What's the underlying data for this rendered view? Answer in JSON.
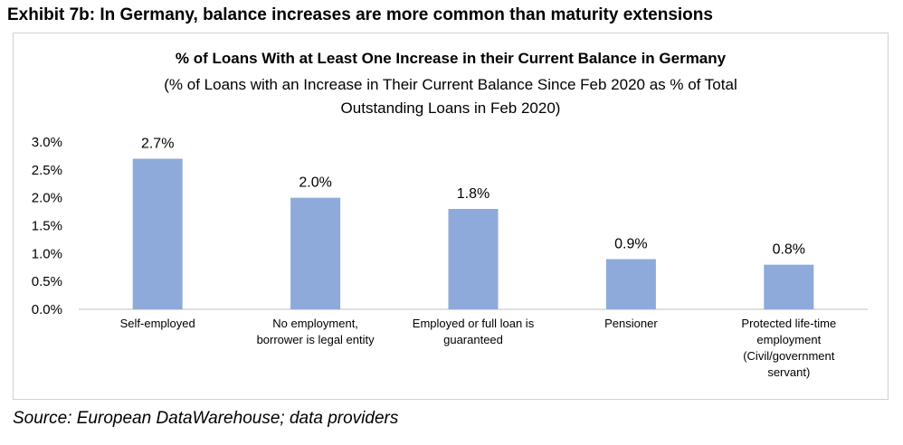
{
  "exhibit_title": "Exhibit 7b: In Germany, balance increases are more common than maturity extensions",
  "source": "Source: European DataWarehouse; data providers",
  "chart_data": {
    "type": "bar",
    "title": "% of Loans With at Least One Increase in their Current Balance in Germany",
    "subtitle": "(% of Loans with an Increase in Their Current Balance Since Feb 2020 as % of Total Outstanding Loans in Feb 2020)",
    "subtitle_lines": [
      "(% of Loans with an Increase in Their Current Balance Since Feb 2020 as % of Total",
      "Outstanding Loans in Feb 2020)"
    ],
    "categories": [
      "Self-employed",
      "No employment, borrower is legal entity",
      "Employed or full loan is guaranteed",
      "Pensioner",
      "Protected life-time employment (Civil/government servant)"
    ],
    "category_lines": [
      [
        "Self-employed"
      ],
      [
        "No employment,",
        "borrower is legal entity"
      ],
      [
        "Employed or full loan is",
        "guaranteed"
      ],
      [
        "Pensioner"
      ],
      [
        "Protected life-time",
        "employment",
        "(Civil/government",
        "servant)"
      ]
    ],
    "values": [
      2.7,
      2.0,
      1.8,
      0.9,
      0.8
    ],
    "data_labels": [
      "2.7%",
      "2.0%",
      "1.8%",
      "0.9%",
      "0.8%"
    ],
    "ylim": [
      0,
      3.0
    ],
    "yticks": [
      0,
      0.5,
      1.0,
      1.5,
      2.0,
      2.5,
      3.0
    ],
    "ytick_labels": [
      "0.0%",
      "0.5%",
      "1.0%",
      "1.5%",
      "2.0%",
      "2.5%",
      "3.0%"
    ],
    "xlabel": "",
    "ylabel": "",
    "grid": false,
    "legend": "none",
    "bar_color": "#8eaadb"
  }
}
